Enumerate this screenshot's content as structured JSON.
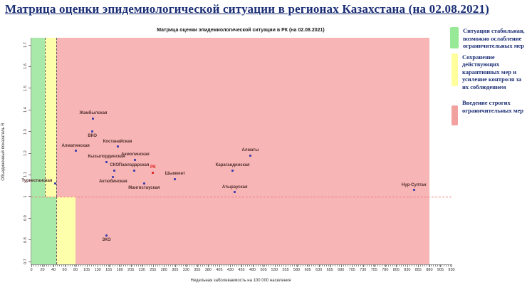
{
  "page": {
    "title": "Матрица оценки эпидемиологической ситуации в регионах Казахстана (на 02.08.2021)"
  },
  "chart": {
    "subtitle": "Матрица оценки эпидемиологической ситуации в РК (на 02.08.2021)",
    "x_axis_title": "Недельная заболеваемость на 100 000 населения",
    "y_axis_title": "Объединенный показатель R"
  },
  "legend": {
    "position": "right",
    "items": [
      {
        "color": "#97e897",
        "label": "Ситуация стабильная, возможно ослабление ограничительных мер"
      },
      {
        "color": "#ffff9e",
        "label": "Сохранение действующих карантинных мер и усиление контроля за их соблюдением"
      },
      {
        "color": "#f2a1a1",
        "label": "Введение строгих ограничительных мер"
      }
    ]
  },
  "chart_data": {
    "type": "scatter",
    "title": "Матрица оценки эпидемиологической ситуации в РК (на 02.08.2021)",
    "xlabel": "Недельная заболеваемость на 100 000 населения",
    "ylabel": "Объединенный показатель R",
    "grid": false,
    "x_ticks": [
      0,
      20,
      40,
      60,
      80,
      105,
      130,
      155,
      180,
      205,
      230,
      255,
      280,
      305,
      330,
      355,
      380,
      405,
      430,
      455,
      480,
      505,
      530,
      555,
      580,
      605,
      630,
      655,
      680,
      705,
      730,
      755,
      780,
      805,
      830,
      855,
      880,
      905,
      930
    ],
    "y_ticks": [
      1.7,
      1.6,
      1.5,
      1.4,
      1.3,
      1.2,
      1.1,
      1,
      0.9,
      0.8,
      0.7
    ],
    "reference_line_R": 1.0,
    "marker_color": "#3c3cae",
    "label_color": "#553131",
    "zone_colors": {
      "green": "#a8e8a8",
      "yellow": "#feffaa",
      "pink": "#f7b5b5"
    },
    "zones": {
      "split_R": 1.0,
      "upper": [
        {
          "to": 25,
          "color": "green"
        },
        {
          "to": 45,
          "color": "yellow"
        },
        {
          "to": 880,
          "color": "pink"
        }
      ],
      "lower": [
        {
          "to": 45,
          "color": "green"
        },
        {
          "to": 80,
          "color": "yellow"
        },
        {
          "to": 880,
          "color": "pink"
        }
      ],
      "upper_dashed_x": [
        25,
        45
      ],
      "lower_dashed_x": [
        45
      ]
    },
    "points": [
      {
        "name": "Жамбылская",
        "x": 120,
        "R": 1.36,
        "label_pos": "above"
      },
      {
        "name": "ВКО",
        "x": 118,
        "R": 1.3,
        "label_pos": "below"
      },
      {
        "name": "Алматинская",
        "x": 80,
        "R": 1.21,
        "label_pos": "above"
      },
      {
        "name": "Костанайская",
        "x": 175,
        "R": 1.23,
        "label_pos": "above"
      },
      {
        "name": "Кызылординская",
        "x": 150,
        "R": 1.16,
        "label_pos": "above"
      },
      {
        "name": "Акмолинская",
        "x": 215,
        "R": 1.17,
        "label_pos": "above"
      },
      {
        "name": "СКО",
        "x": 168,
        "R": 1.12,
        "label_pos": "above"
      },
      {
        "name": "Павлодарская",
        "x": 212,
        "R": 1.12,
        "label_pos": "above"
      },
      {
        "name": "РК",
        "x": 255,
        "R": 1.11,
        "label_pos": "above",
        "color": "#e02020",
        "label_color": "#e02020"
      },
      {
        "name": "Шымкент",
        "x": 305,
        "R": 1.08,
        "label_pos": "above"
      },
      {
        "name": "Актюбинская",
        "x": 165,
        "R": 1.09,
        "label_pos": "below"
      },
      {
        "name": "Мангистауская",
        "x": 235,
        "R": 1.06,
        "label_pos": "below"
      },
      {
        "name": "Туркестанская",
        "x": 43,
        "R": 1.06,
        "label_pos": "left"
      },
      {
        "name": "Алматы",
        "x": 475,
        "R": 1.19,
        "label_pos": "above"
      },
      {
        "name": "Карагандинская",
        "x": 435,
        "R": 1.12,
        "label_pos": "above"
      },
      {
        "name": "Атырауская",
        "x": 440,
        "R": 1.02,
        "label_pos": "above"
      },
      {
        "name": "Нур-Султан",
        "x": 845,
        "R": 1.03,
        "label_pos": "above"
      },
      {
        "name": "ЗКО",
        "x": 150,
        "R": 0.82,
        "label_pos": "below"
      }
    ]
  }
}
